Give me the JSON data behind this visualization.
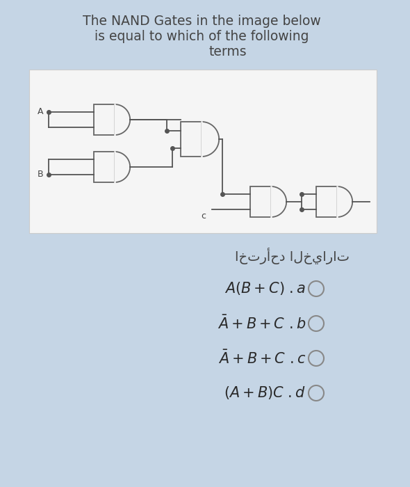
{
  "bg_color": "#c5d5e5",
  "card_color": "#f2f2f2",
  "title_line1": "The NAND Gates in the image below",
  "title_line2": "is equal to which of the following",
  "title_line3": "terms",
  "arabic_text": "اخترأحد الخيارات",
  "wire_color": "#555555",
  "gate_edge": "#666666",
  "text_color": "#444444",
  "title_fontsize": 13.5,
  "option_fontsize": 15,
  "label_fontsize": 9
}
